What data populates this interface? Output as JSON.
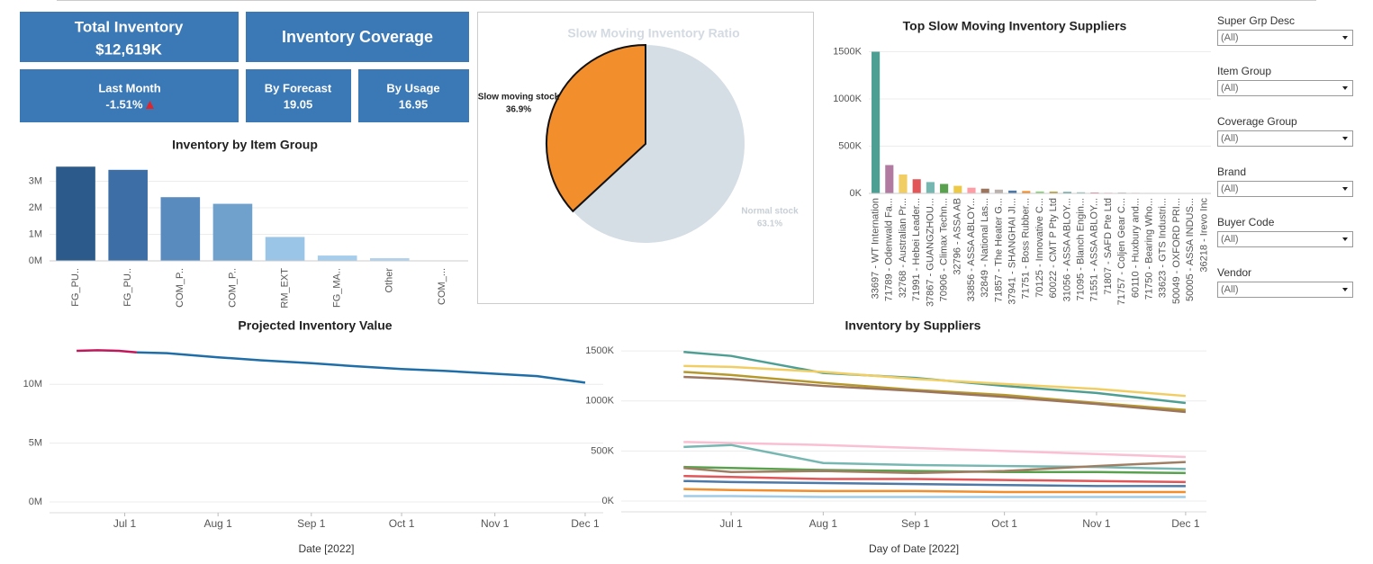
{
  "kpis": {
    "total_inventory": {
      "label": "Total Inventory",
      "value": "$12,619K"
    },
    "coverage_title": "Inventory Coverage",
    "last_month": {
      "label": "Last Month",
      "value": "-1.51%"
    },
    "by_forecast": {
      "label": "By Forecast",
      "value": "19.05"
    },
    "by_usage": {
      "label": "By Usage",
      "value": "16.95"
    }
  },
  "filters": [
    {
      "label": "Super Grp Desc",
      "value": "(All)"
    },
    {
      "label": "Item Group",
      "value": "(All)"
    },
    {
      "label": "Coverage Group",
      "value": "(All)"
    },
    {
      "label": "Brand",
      "value": "(All)"
    },
    {
      "label": "Buyer Code",
      "value": "(All)"
    },
    {
      "label": "Vendor",
      "value": "(All)"
    }
  ],
  "chart_data": [
    {
      "type": "bar",
      "title": "Inventory by Item Group",
      "categories": [
        "FG_PU..",
        "FG_PU..",
        "COM_P..",
        "COM_P..",
        "RM_EXT",
        "FG_MA..",
        "Other",
        "COM_..."
      ],
      "values": [
        3550000,
        3430000,
        2400000,
        2150000,
        900000,
        200000,
        100000,
        10000
      ],
      "colors": [
        "#2c5b8b",
        "#3d6fa6",
        "#5a8bbf",
        "#70a1cd",
        "#9ac5e6",
        "#a6cdeb",
        "#b0d2ee",
        "#bcdaf1"
      ],
      "ylim": [
        0,
        4000000
      ],
      "yticks": [
        {
          "value": 0,
          "label": "0M"
        },
        {
          "value": 1000000,
          "label": "1M"
        },
        {
          "value": 2000000,
          "label": "2M"
        },
        {
          "value": 3000000,
          "label": "3M"
        }
      ],
      "grid": true
    },
    {
      "type": "pie",
      "title": "Slow Moving Inventory Ratio",
      "categories": [
        "Slow moving stock",
        "Normal stock"
      ],
      "values": [
        36.9,
        63.1
      ],
      "value_labels": [
        "36.9%",
        "63.1%"
      ],
      "colors": [
        "#f28e2b",
        "#d5dde5"
      ]
    },
    {
      "type": "bar",
      "title": "Top Slow Moving Inventory Suppliers",
      "categories": [
        "33697 - WT Internation",
        "71789 - Odenwald Fa...",
        "32768 - Australian Pr...",
        "71991 - Hebei Leader...",
        "37867 - GUANGZHOU...",
        "70906 - Climax Techn...",
        "32796 - ASSA AB",
        "33856 - ASSA ABLOY...",
        "32849 - National Las...",
        "71857 - The Heater G...",
        "37941 - SHANGHAI JI...",
        "71751 - Boss Rubber...",
        "70125 - Innovative C...",
        "60022 - CMT P Pty Ltd",
        "31056 - ASSA ABLOY...",
        "71095 - Blanch Engin...",
        "71551 - ASSA ABLOY...",
        "71807 - SAFD Pte Ltd",
        "71757 - Coljen Gear C...",
        "60110 - Huxbury and...",
        "71750 - Bearing Who...",
        "33623 - GTS Industri...",
        "50049 - OXFORD PRI...",
        "50005 - ASSA INDUS...",
        "36218 - Irevo Inc"
      ],
      "values": [
        1500000,
        300000,
        200000,
        150000,
        120000,
        100000,
        80000,
        60000,
        50000,
        40000,
        30000,
        25000,
        20000,
        18000,
        15000,
        12000,
        10000,
        8000,
        7000,
        6000,
        5000,
        4000,
        3000,
        2000,
        1000
      ],
      "colors": [
        "#4e9f93",
        "#b07aa1",
        "#f1ce63",
        "#e15759",
        "#76b7b2",
        "#59a14f",
        "#edc948",
        "#ff9da7",
        "#9c755f",
        "#bab0ac",
        "#4e79a7",
        "#f28e2b",
        "#8cd17d",
        "#b6992d",
        "#499894",
        "#86bcb6",
        "#d37295",
        "#fabfd2",
        "#79706e",
        "#d4a6c8",
        "#a0cbe8",
        "#ffbe7d",
        "#9d7660",
        "#d7b5a6",
        "#e15759"
      ],
      "ylim": [
        0,
        1600000
      ],
      "yticks": [
        {
          "value": 0,
          "label": "0K"
        },
        {
          "value": 500000,
          "label": "500K"
        },
        {
          "value": 1000000,
          "label": "1000K"
        },
        {
          "value": 1500000,
          "label": "1500K"
        }
      ],
      "grid": true
    },
    {
      "type": "line",
      "title": "Projected Inventory Value",
      "x_label": "Date [2022]",
      "x": [
        "2022-06-15",
        "2022-06-22",
        "2022-06-29",
        "2022-07-05",
        "2022-07-15",
        "2022-08-01",
        "2022-08-15",
        "2022-09-01",
        "2022-09-15",
        "2022-10-01",
        "2022-10-15",
        "2022-11-01",
        "2022-11-15",
        "2022-12-01"
      ],
      "series": [
        {
          "color": "#c2185b",
          "values": [
            12850000,
            12900000,
            12850000,
            12720000,
            null,
            null,
            null,
            null,
            null,
            null,
            null,
            null,
            null,
            null
          ]
        },
        {
          "color": "#1f6ea8",
          "values": [
            null,
            null,
            null,
            12720000,
            12650000,
            12300000,
            12050000,
            11800000,
            11550000,
            11300000,
            11150000,
            10900000,
            10700000,
            10150000
          ]
        }
      ],
      "xlim": [
        "2022-06-06",
        "2022-12-07"
      ],
      "xticks": [
        {
          "value": "2022-07-01",
          "label": "Jul 1"
        },
        {
          "value": "2022-08-01",
          "label": "Aug 1"
        },
        {
          "value": "2022-09-01",
          "label": "Sep 1"
        },
        {
          "value": "2022-10-01",
          "label": "Oct 1"
        },
        {
          "value": "2022-11-01",
          "label": "Nov 1"
        },
        {
          "value": "2022-12-01",
          "label": "Dec 1"
        }
      ],
      "ylim": [
        0,
        14000000
      ],
      "yticks": [
        {
          "value": 0,
          "label": "0M"
        },
        {
          "value": 5000000,
          "label": "5M"
        },
        {
          "value": 10000000,
          "label": "10M"
        }
      ],
      "grid": true
    },
    {
      "type": "line",
      "title": "Inventory by Suppliers",
      "x_label": "Day of Date [2022]",
      "x": [
        "2022-06-15",
        "2022-07-01",
        "2022-08-01",
        "2022-09-01",
        "2022-10-01",
        "2022-11-01",
        "2022-12-01"
      ],
      "series": [
        {
          "color": "#4e9f93",
          "values": [
            1490000,
            1450000,
            1280000,
            1230000,
            1150000,
            1080000,
            980000
          ]
        },
        {
          "color": "#f1ce63",
          "values": [
            1350000,
            1340000,
            1290000,
            1220000,
            1170000,
            1120000,
            1050000
          ]
        },
        {
          "color": "#b6992d",
          "values": [
            1290000,
            1260000,
            1180000,
            1110000,
            1060000,
            980000,
            910000
          ]
        },
        {
          "color": "#9c755f",
          "values": [
            1240000,
            1220000,
            1150000,
            1100000,
            1040000,
            970000,
            890000
          ]
        },
        {
          "color": "#fabfd2",
          "values": [
            590000,
            580000,
            560000,
            530000,
            500000,
            470000,
            440000
          ]
        },
        {
          "color": "#76b7b2",
          "values": [
            540000,
            560000,
            380000,
            360000,
            350000,
            340000,
            320000
          ]
        },
        {
          "color": "#59a14f",
          "values": [
            340000,
            330000,
            310000,
            300000,
            290000,
            290000,
            280000
          ]
        },
        {
          "color": "#a07e63",
          "values": [
            330000,
            290000,
            300000,
            280000,
            300000,
            350000,
            390000
          ]
        },
        {
          "color": "#e15759",
          "values": [
            250000,
            240000,
            220000,
            220000,
            210000,
            200000,
            190000
          ]
        },
        {
          "color": "#4e79a7",
          "values": [
            200000,
            190000,
            180000,
            170000,
            160000,
            150000,
            150000
          ]
        },
        {
          "color": "#f28e2b",
          "values": [
            120000,
            110000,
            100000,
            100000,
            90000,
            90000,
            90000
          ]
        },
        {
          "color": "#a0cbe8",
          "values": [
            50000,
            50000,
            40000,
            40000,
            40000,
            40000,
            40000
          ]
        }
      ],
      "xlim": [
        "2022-05-25",
        "2022-12-08"
      ],
      "xticks": [
        {
          "value": "2022-07-01",
          "label": "Jul 1"
        },
        {
          "value": "2022-08-01",
          "label": "Aug 1"
        },
        {
          "value": "2022-09-01",
          "label": "Sep 1"
        },
        {
          "value": "2022-10-01",
          "label": "Oct 1"
        },
        {
          "value": "2022-11-01",
          "label": "Nov 1"
        },
        {
          "value": "2022-12-01",
          "label": "Dec 1"
        }
      ],
      "ylim": [
        0,
        1600000
      ],
      "yticks": [
        {
          "value": 0,
          "label": "0K"
        },
        {
          "value": 500000,
          "label": "500K"
        },
        {
          "value": 1000000,
          "label": "1000K"
        },
        {
          "value": 1500000,
          "label": "1500K"
        }
      ],
      "grid": true
    }
  ]
}
